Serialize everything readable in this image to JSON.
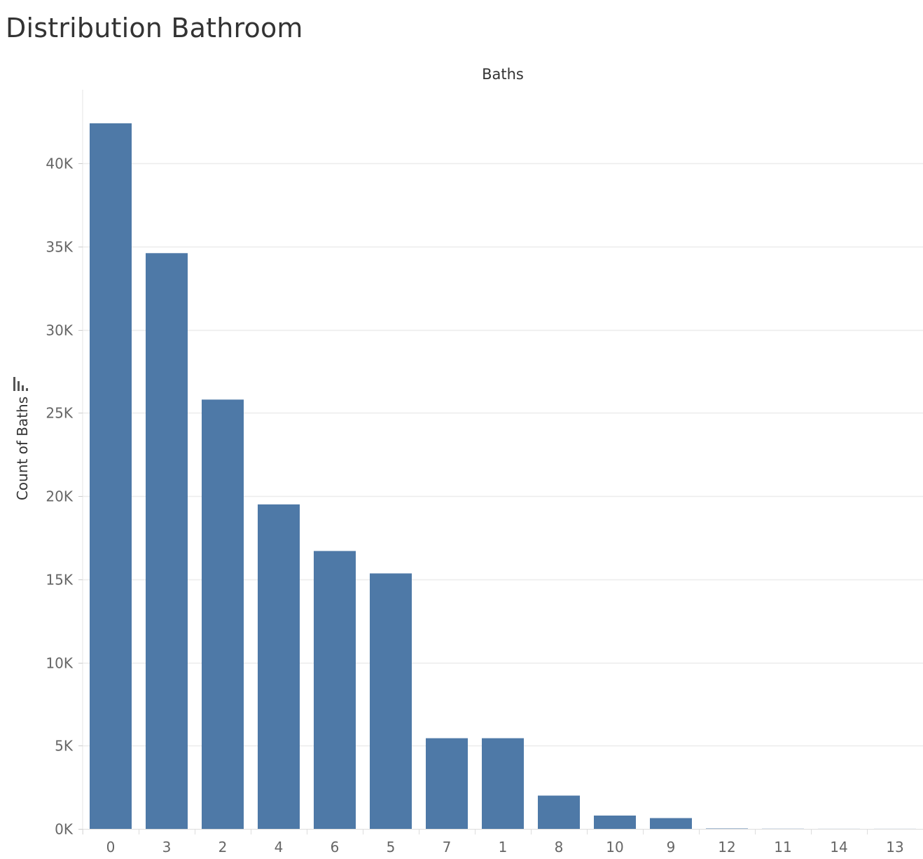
{
  "page": {
    "title": "Distribution Bathroom"
  },
  "chart_data": {
    "type": "bar",
    "header": "Baths",
    "xlabel": "",
    "ylabel": "Count of Baths",
    "categories": [
      "0",
      "3",
      "2",
      "4",
      "6",
      "5",
      "7",
      "1",
      "8",
      "10",
      "9",
      "12",
      "11",
      "14",
      "13"
    ],
    "values": [
      42400,
      34600,
      25800,
      19500,
      16700,
      15350,
      5450,
      5450,
      2000,
      800,
      650,
      20,
      10,
      5,
      5
    ],
    "ylim": [
      0,
      45000
    ],
    "yticks": [
      0,
      5000,
      10000,
      15000,
      20000,
      25000,
      30000,
      35000,
      40000
    ],
    "ytick_labels": [
      "0K",
      "5K",
      "10K",
      "15K",
      "20K",
      "25K",
      "30K",
      "35K",
      "40K"
    ],
    "grid": true,
    "bar_color": "#4e79a7",
    "sorted": "descending"
  }
}
